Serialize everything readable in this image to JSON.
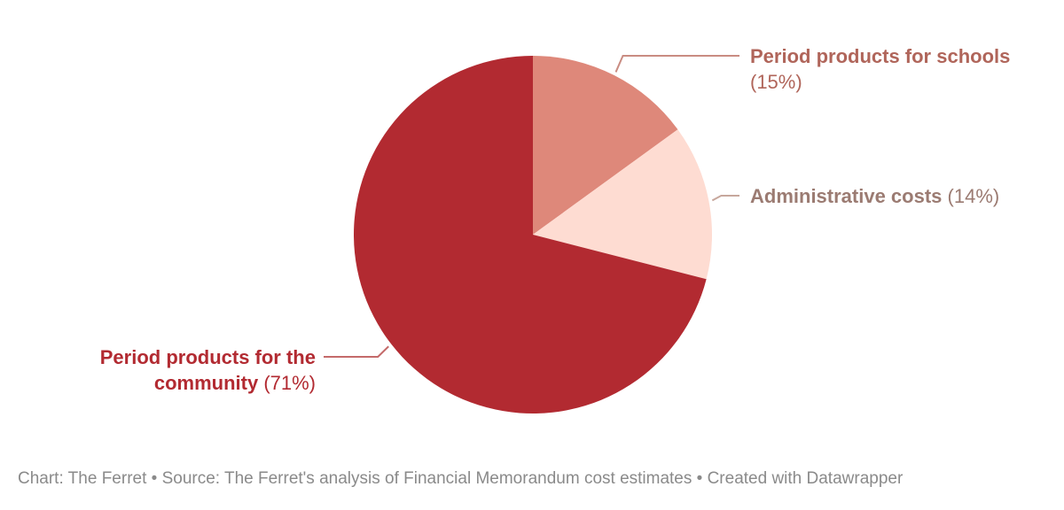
{
  "chart_data": {
    "type": "pie",
    "slices": [
      {
        "name": "Period products for schools",
        "percent_label": "(15%)",
        "value": 15,
        "color": "#de887a"
      },
      {
        "name": "Administrative costs",
        "percent_label": "(14%)",
        "value": 14,
        "color": "#fedcd2"
      },
      {
        "name": "Period products for the community",
        "percent_label": "(71%)",
        "value": 71,
        "color": "#b22a31"
      }
    ],
    "label_colors": {
      "schools": "#b0655a",
      "admin": "#9b7b72",
      "community": "#b22a31"
    },
    "leader_colors": {
      "schools": "#c98c82",
      "admin": "#c7a79c",
      "community": "#c46a6a"
    }
  },
  "footer": {
    "text": "Chart: The Ferret • Source: The Ferret's analysis of Financial Memorandum cost estimates • Created with Datawrapper"
  }
}
